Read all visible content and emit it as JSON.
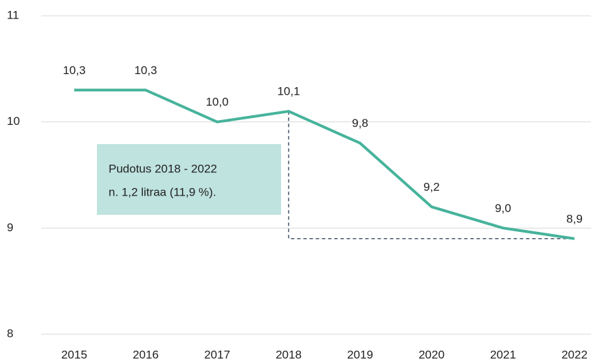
{
  "chart_data": {
    "type": "line",
    "categories": [
      "2015",
      "2016",
      "2017",
      "2018",
      "2019",
      "2020",
      "2021",
      "2022"
    ],
    "series": [
      {
        "color": "#46b39b",
        "values": [
          10.3,
          10.3,
          10.0,
          10.1,
          9.8,
          9.2,
          9.0,
          8.9
        ],
        "value_labels": [
          "10,3",
          "10,3",
          "10,0",
          "10,1",
          "9,8",
          "9,2",
          "9,0",
          "8,9"
        ]
      }
    ],
    "ylim": [
      8,
      11
    ],
    "yticks": [
      8,
      9,
      10,
      11
    ],
    "grid": true,
    "annotations": [
      "Pudotus 2018 - 2022",
      "n. 1,2 litraa (11,9 %)."
    ]
  }
}
